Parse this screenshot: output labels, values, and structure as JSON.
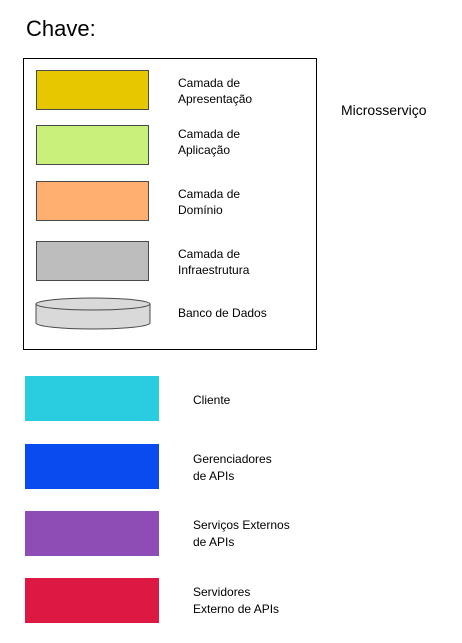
{
  "title": "Chave:",
  "side_label": "Microsserviço",
  "layers": [
    {
      "line1": "Camada de",
      "line2": "Apresentação",
      "color": "#E6C700",
      "shape": "rectangle"
    },
    {
      "line1": "Camada de",
      "line2": "Aplicação",
      "color": "#C9F07A",
      "shape": "rectangle"
    },
    {
      "line1": "Camada de",
      "line2": "Domínio",
      "color": "#FFB070",
      "shape": "rectangle"
    },
    {
      "line1": "Camada de",
      "line2": "Infraestrutura",
      "color": "#BDBDBD",
      "shape": "rectangle"
    },
    {
      "line1": "Banco de Dados",
      "line2": "",
      "color": "#D9D9D9",
      "shape": "cylinder"
    }
  ],
  "externals": [
    {
      "line1": "Cliente",
      "line2": "",
      "color": "#2ACDE0"
    },
    {
      "line1": "Gerenciadores",
      "line2": "de APIs",
      "color": "#0A4BEF"
    },
    {
      "line1": "Serviços Externos",
      "line2": "de APIs",
      "color": "#8D4DB5"
    },
    {
      "line1": "Servidores",
      "line2": "Externo de APIs",
      "color": "#DC1843"
    }
  ]
}
